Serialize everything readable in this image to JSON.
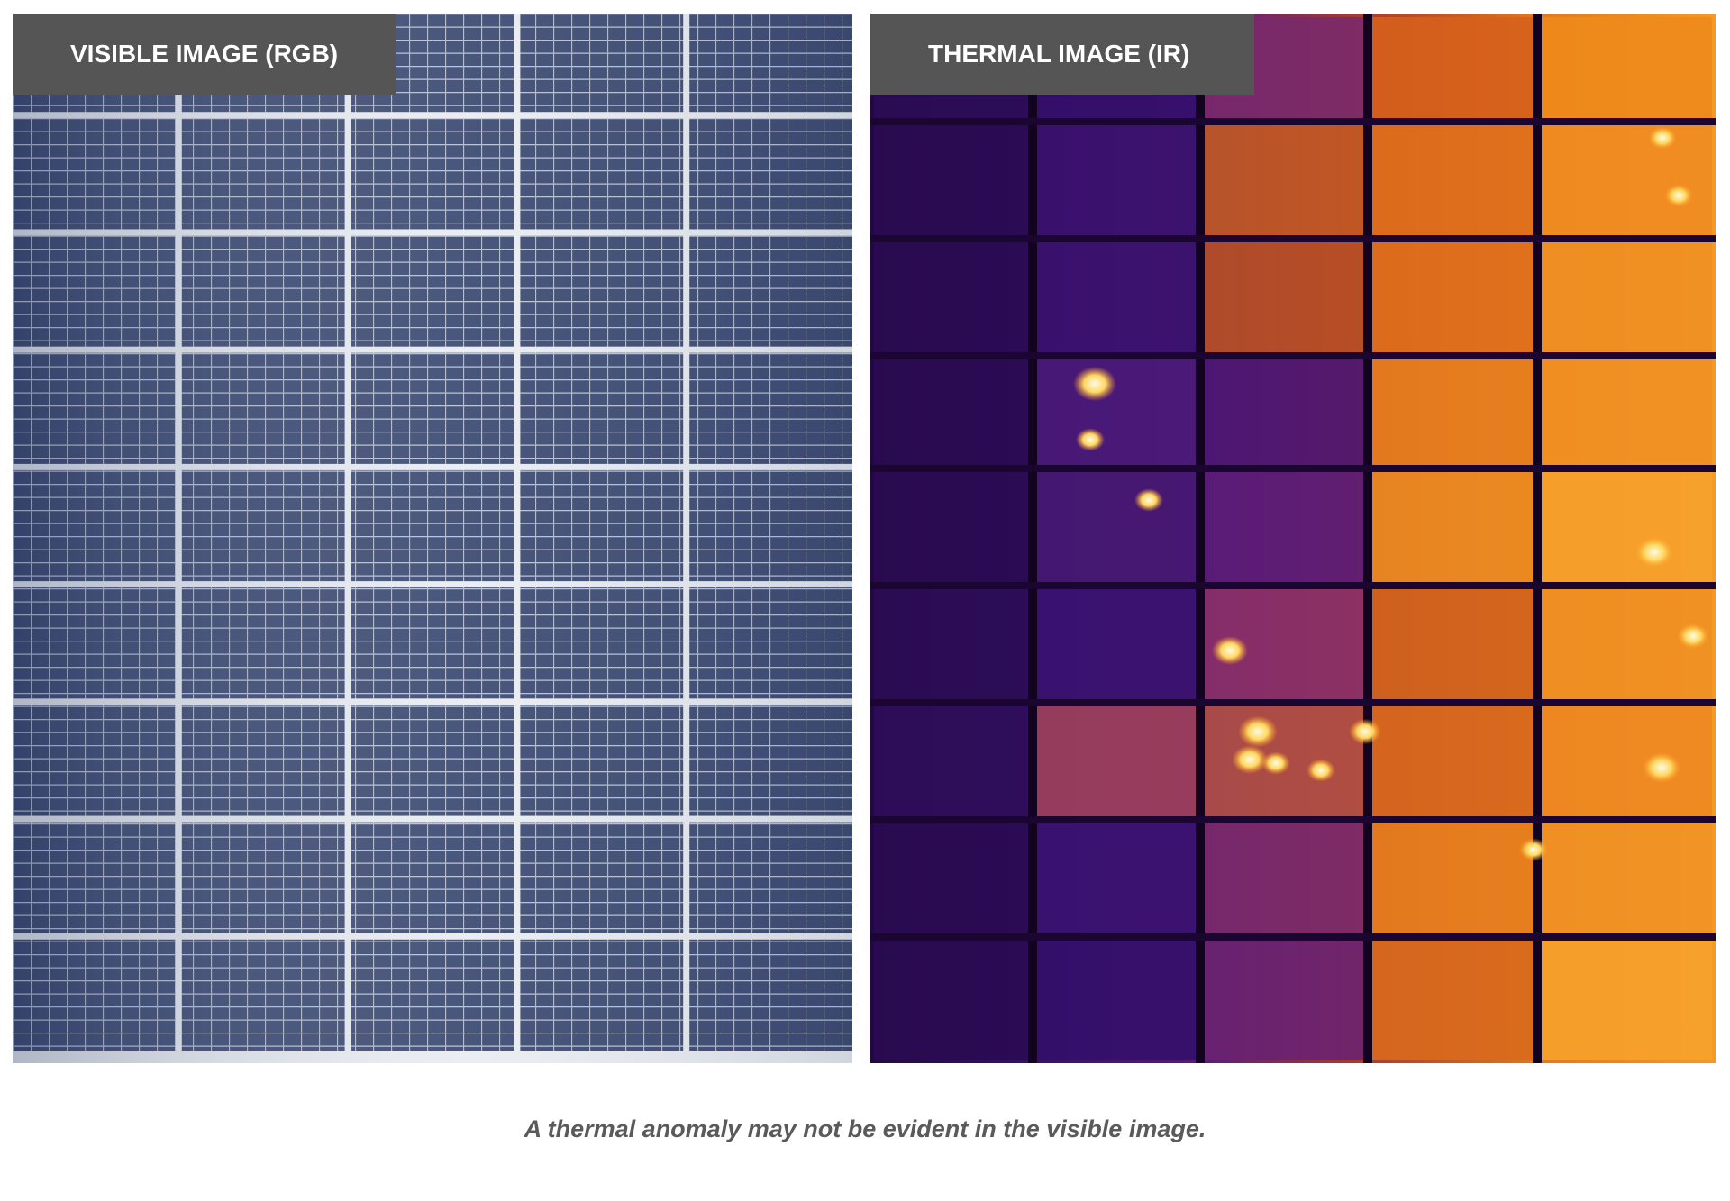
{
  "panels": {
    "visible": {
      "label": "VISIBLE IMAGE (RGB)"
    },
    "thermal": {
      "label": "THERMAL IMAGE (IR)"
    }
  },
  "caption": "A thermal anomaly may not be evident in the visible image.",
  "colors": {
    "label_bg": "#555555",
    "label_text": "#ffffff",
    "caption_text": "#5a5a5a",
    "module_blue": "#3c4a72",
    "frame_silver": "#d9dde4",
    "ir_cold": "#2a0f52",
    "ir_warm": "#c44a1a",
    "ir_hot": "#ffb020",
    "ir_hotspot": "#fff6c8"
  }
}
